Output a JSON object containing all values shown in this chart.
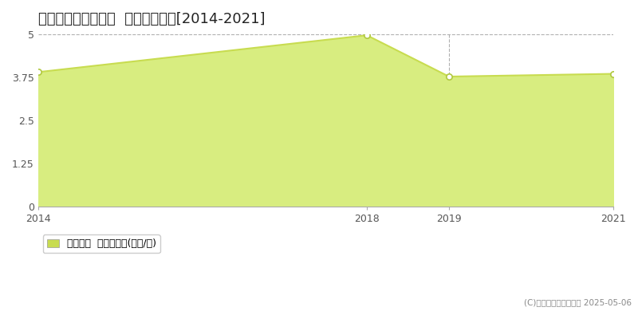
{
  "title": "多気郡大台町下三瀬  住宅価格推移[2014-2021]",
  "years": [
    2014,
    2018,
    2019,
    2021
  ],
  "values": [
    3.9,
    4.97,
    3.77,
    3.85
  ],
  "ylim": [
    0,
    5
  ],
  "yticks": [
    0,
    1.25,
    2.5,
    3.75,
    5
  ],
  "xticks": [
    2014,
    2018,
    2019,
    2021
  ],
  "vlines": [
    2018,
    2019
  ],
  "line_color": "#c8dc50",
  "fill_color": "#d8ed80",
  "marker_color": "#ffffff",
  "marker_edge_color": "#b0c840",
  "grid_color": "#b0b0b0",
  "bg_color": "#ffffff",
  "legend_label": "住宅価格  平均坪単価(万円/坪)",
  "copyright": "(C)土地価格ドットコム 2025-05-06",
  "title_fontsize": 13,
  "axis_fontsize": 9,
  "legend_fontsize": 9
}
